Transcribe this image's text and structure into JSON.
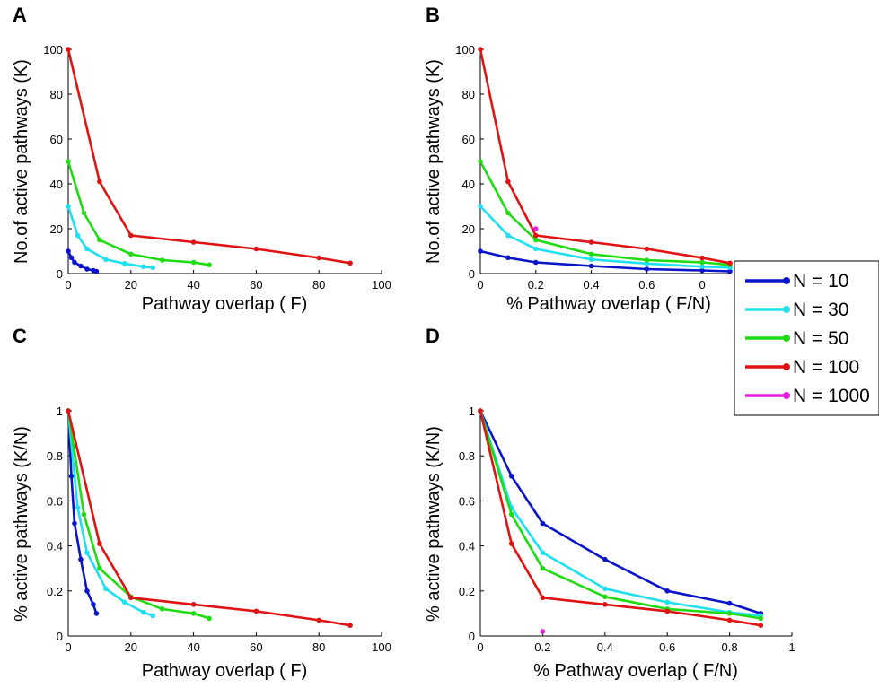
{
  "chart_data": [
    {
      "panel": "A",
      "type": "line",
      "xlabel": "Pathway overlap ( F)",
      "ylabel": "No.of active pathways (K)",
      "xlim": [
        0,
        100
      ],
      "ylim": [
        0,
        100
      ],
      "xticks": [
        "0",
        "20",
        "40",
        "60",
        "80",
        "100"
      ],
      "yticks": [
        "0",
        "20",
        "40",
        "60",
        "80",
        "100"
      ],
      "series": [
        {
          "name": "N = 10",
          "color": "#0a14c8",
          "x": [
            0,
            1,
            2,
            4,
            6,
            8,
            9
          ],
          "y": [
            10,
            7.1,
            5,
            3.4,
            2,
            1.4,
            1
          ]
        },
        {
          "name": "N = 30",
          "color": "#1ee0f0",
          "x": [
            0,
            3,
            6,
            12,
            18,
            24,
            27
          ],
          "y": [
            30,
            17,
            11,
            6.3,
            4.5,
            3.1,
            2.7
          ]
        },
        {
          "name": "N = 50",
          "color": "#1edc10",
          "x": [
            0,
            5,
            10,
            20,
            30,
            40,
            45
          ],
          "y": [
            50,
            27,
            15,
            8.7,
            6,
            5,
            3.9
          ]
        },
        {
          "name": "N = 100",
          "color": "#e01212",
          "x": [
            0,
            10,
            20,
            40,
            60,
            80,
            90
          ],
          "y": [
            100,
            41,
            17,
            14,
            11,
            7,
            4.7
          ]
        }
      ]
    },
    {
      "panel": "B",
      "type": "line",
      "xlabel": "% Pathway overlap ( F/N)",
      "ylabel": "No.of active pathways (K)",
      "xlim": [
        0,
        0.9
      ],
      "ylim": [
        0,
        100
      ],
      "xticks": [
        "0",
        "0.2",
        "0.4",
        "0.6",
        "0"
      ],
      "yticks": [
        "0",
        "20",
        "40",
        "60",
        "80",
        "100"
      ],
      "series": [
        {
          "name": "N = 10",
          "color": "#0a14c8",
          "x": [
            0,
            0.1,
            0.2,
            0.4,
            0.6,
            0.8,
            0.9
          ],
          "y": [
            10,
            7.1,
            5,
            3.4,
            2,
            1.4,
            1
          ]
        },
        {
          "name": "N = 30",
          "color": "#1ee0f0",
          "x": [
            0,
            0.1,
            0.2,
            0.4,
            0.6,
            0.8,
            0.9
          ],
          "y": [
            30,
            17,
            11,
            6.3,
            4.5,
            3.1,
            2.7
          ]
        },
        {
          "name": "N = 50",
          "color": "#1edc10",
          "x": [
            0,
            0.1,
            0.2,
            0.4,
            0.6,
            0.8,
            0.9
          ],
          "y": [
            50,
            27,
            15,
            8.7,
            6,
            5,
            3.9
          ]
        },
        {
          "name": "N = 100",
          "color": "#e01212",
          "x": [
            0,
            0.1,
            0.2,
            0.4,
            0.6,
            0.8,
            0.9
          ],
          "y": [
            100,
            41,
            17,
            14,
            11,
            7,
            4.7
          ]
        },
        {
          "name": "N = 1000",
          "color": "#e81ee8",
          "x": [
            0.2
          ],
          "y": [
            20
          ]
        }
      ]
    },
    {
      "panel": "C",
      "type": "line",
      "xlabel": "Pathway overlap ( F)",
      "ylabel": "% active pathways (K/N)",
      "xlim": [
        0,
        100
      ],
      "ylim": [
        0,
        1
      ],
      "xticks": [
        "0",
        "20",
        "40",
        "60",
        "80",
        "100"
      ],
      "yticks": [
        "0",
        "0.2",
        "0.4",
        "0.6",
        "0.8",
        "1"
      ],
      "series": [
        {
          "name": "N = 10",
          "color": "#0a14c8",
          "x": [
            0,
            1,
            2,
            4,
            6,
            8,
            9
          ],
          "y": [
            1,
            0.71,
            0.5,
            0.34,
            0.2,
            0.14,
            0.1
          ]
        },
        {
          "name": "N = 30",
          "color": "#1ee0f0",
          "x": [
            0,
            3,
            6,
            12,
            18,
            24,
            27
          ],
          "y": [
            1,
            0.57,
            0.37,
            0.21,
            0.15,
            0.105,
            0.09
          ]
        },
        {
          "name": "N = 50",
          "color": "#1edc10",
          "x": [
            0,
            5,
            10,
            20,
            30,
            40,
            45
          ],
          "y": [
            1,
            0.54,
            0.3,
            0.174,
            0.12,
            0.1,
            0.078
          ]
        },
        {
          "name": "N = 100",
          "color": "#e01212",
          "x": [
            0,
            10,
            20,
            40,
            60,
            80,
            90
          ],
          "y": [
            1,
            0.41,
            0.17,
            0.14,
            0.11,
            0.07,
            0.047
          ]
        }
      ]
    },
    {
      "panel": "D",
      "type": "line",
      "xlabel": "% Pathway overlap ( F/N)",
      "ylabel": "% active pathways (K/N)",
      "xlim": [
        0,
        1
      ],
      "ylim": [
        0,
        1
      ],
      "xticks": [
        "0",
        "0.2",
        "0.4",
        "0.6",
        "0.8",
        "1"
      ],
      "yticks": [
        "0",
        "0.2",
        "0.4",
        "0.6",
        "0.8",
        "1"
      ],
      "series": [
        {
          "name": "N = 10",
          "color": "#0a14c8",
          "x": [
            0,
            0.1,
            0.2,
            0.4,
            0.6,
            0.8,
            0.9
          ],
          "y": [
            1,
            0.71,
            0.5,
            0.34,
            0.2,
            0.145,
            0.1
          ]
        },
        {
          "name": "N = 30",
          "color": "#1ee0f0",
          "x": [
            0,
            0.1,
            0.2,
            0.4,
            0.6,
            0.8,
            0.9
          ],
          "y": [
            1,
            0.57,
            0.37,
            0.21,
            0.15,
            0.105,
            0.09
          ]
        },
        {
          "name": "N = 50",
          "color": "#1edc10",
          "x": [
            0,
            0.1,
            0.2,
            0.4,
            0.6,
            0.8,
            0.9
          ],
          "y": [
            1,
            0.54,
            0.3,
            0.174,
            0.12,
            0.1,
            0.078
          ]
        },
        {
          "name": "N = 100",
          "color": "#e01212",
          "x": [
            0,
            0.1,
            0.2,
            0.4,
            0.6,
            0.8,
            0.9
          ],
          "y": [
            1,
            0.41,
            0.17,
            0.14,
            0.11,
            0.07,
            0.047
          ]
        },
        {
          "name": "N = 1000",
          "color": "#e81ee8",
          "x": [
            0.2
          ],
          "y": [
            0.02
          ]
        }
      ]
    }
  ],
  "legend": {
    "placement": "right, between top and bottom panels",
    "entries": [
      {
        "label": "N = 10",
        "color": "#0a14c8"
      },
      {
        "label": "N = 30",
        "color": "#1ee0f0"
      },
      {
        "label": "N = 50",
        "color": "#1edc10"
      },
      {
        "label": "N = 100",
        "color": "#e01212"
      },
      {
        "label": "N = 1000",
        "color": "#e81ee8"
      }
    ]
  }
}
